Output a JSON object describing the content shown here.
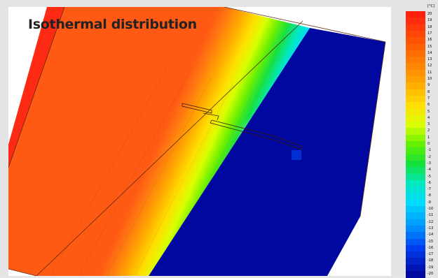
{
  "title": "Isothermal distribution",
  "legend": {
    "unit": "[°C]",
    "values": [
      20,
      19,
      18,
      17,
      16,
      15,
      14,
      13,
      12,
      11,
      10,
      9,
      8,
      7,
      6,
      5,
      4,
      3,
      2,
      1,
      0,
      -1,
      -2,
      -3,
      -4,
      -5,
      -6,
      -7,
      -8,
      -9,
      -10,
      -11,
      -12,
      -13,
      -14,
      -15,
      -16,
      -17,
      -18,
      -19,
      -20
    ]
  },
  "colors": {
    "warm_face": "#ff5a14",
    "hot_edge": "#ff2a14",
    "cold_face": "#0008a0",
    "outline": "#5a2a10",
    "background": "#e4e4e4"
  }
}
